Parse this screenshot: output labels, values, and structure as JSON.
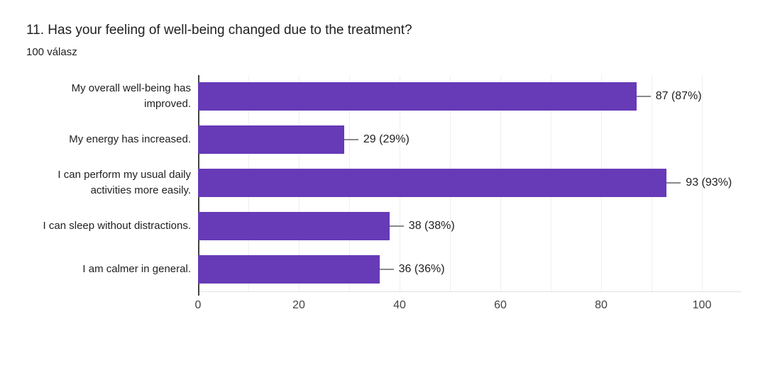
{
  "chart_data": {
    "type": "bar",
    "orientation": "horizontal",
    "title": "11. Has your feeling of well-being changed due to the treatment?",
    "subtitle": "100 válasz",
    "categories": [
      "My overall well-being has improved.",
      "My energy has increased.",
      "I can perform my usual daily activities more easily.",
      "I can sleep without distractions.",
      "I am calmer in general."
    ],
    "values": [
      87,
      29,
      93,
      38,
      36
    ],
    "value_labels": [
      "87 (87%)",
      "29 (29%)",
      "93 (93%)",
      "38 (38%)",
      "36 (36%)"
    ],
    "xlabel": "",
    "ylabel": "",
    "xlim": [
      0,
      100
    ],
    "x_ticks": [
      0,
      20,
      40,
      60,
      80,
      100
    ],
    "gridline_step": 10,
    "grid": true,
    "legend": false,
    "bar_color": "#673ab7",
    "connector_color": "#8a8a8a",
    "axis_color": "#424242",
    "gridline_color": "#efefef"
  }
}
